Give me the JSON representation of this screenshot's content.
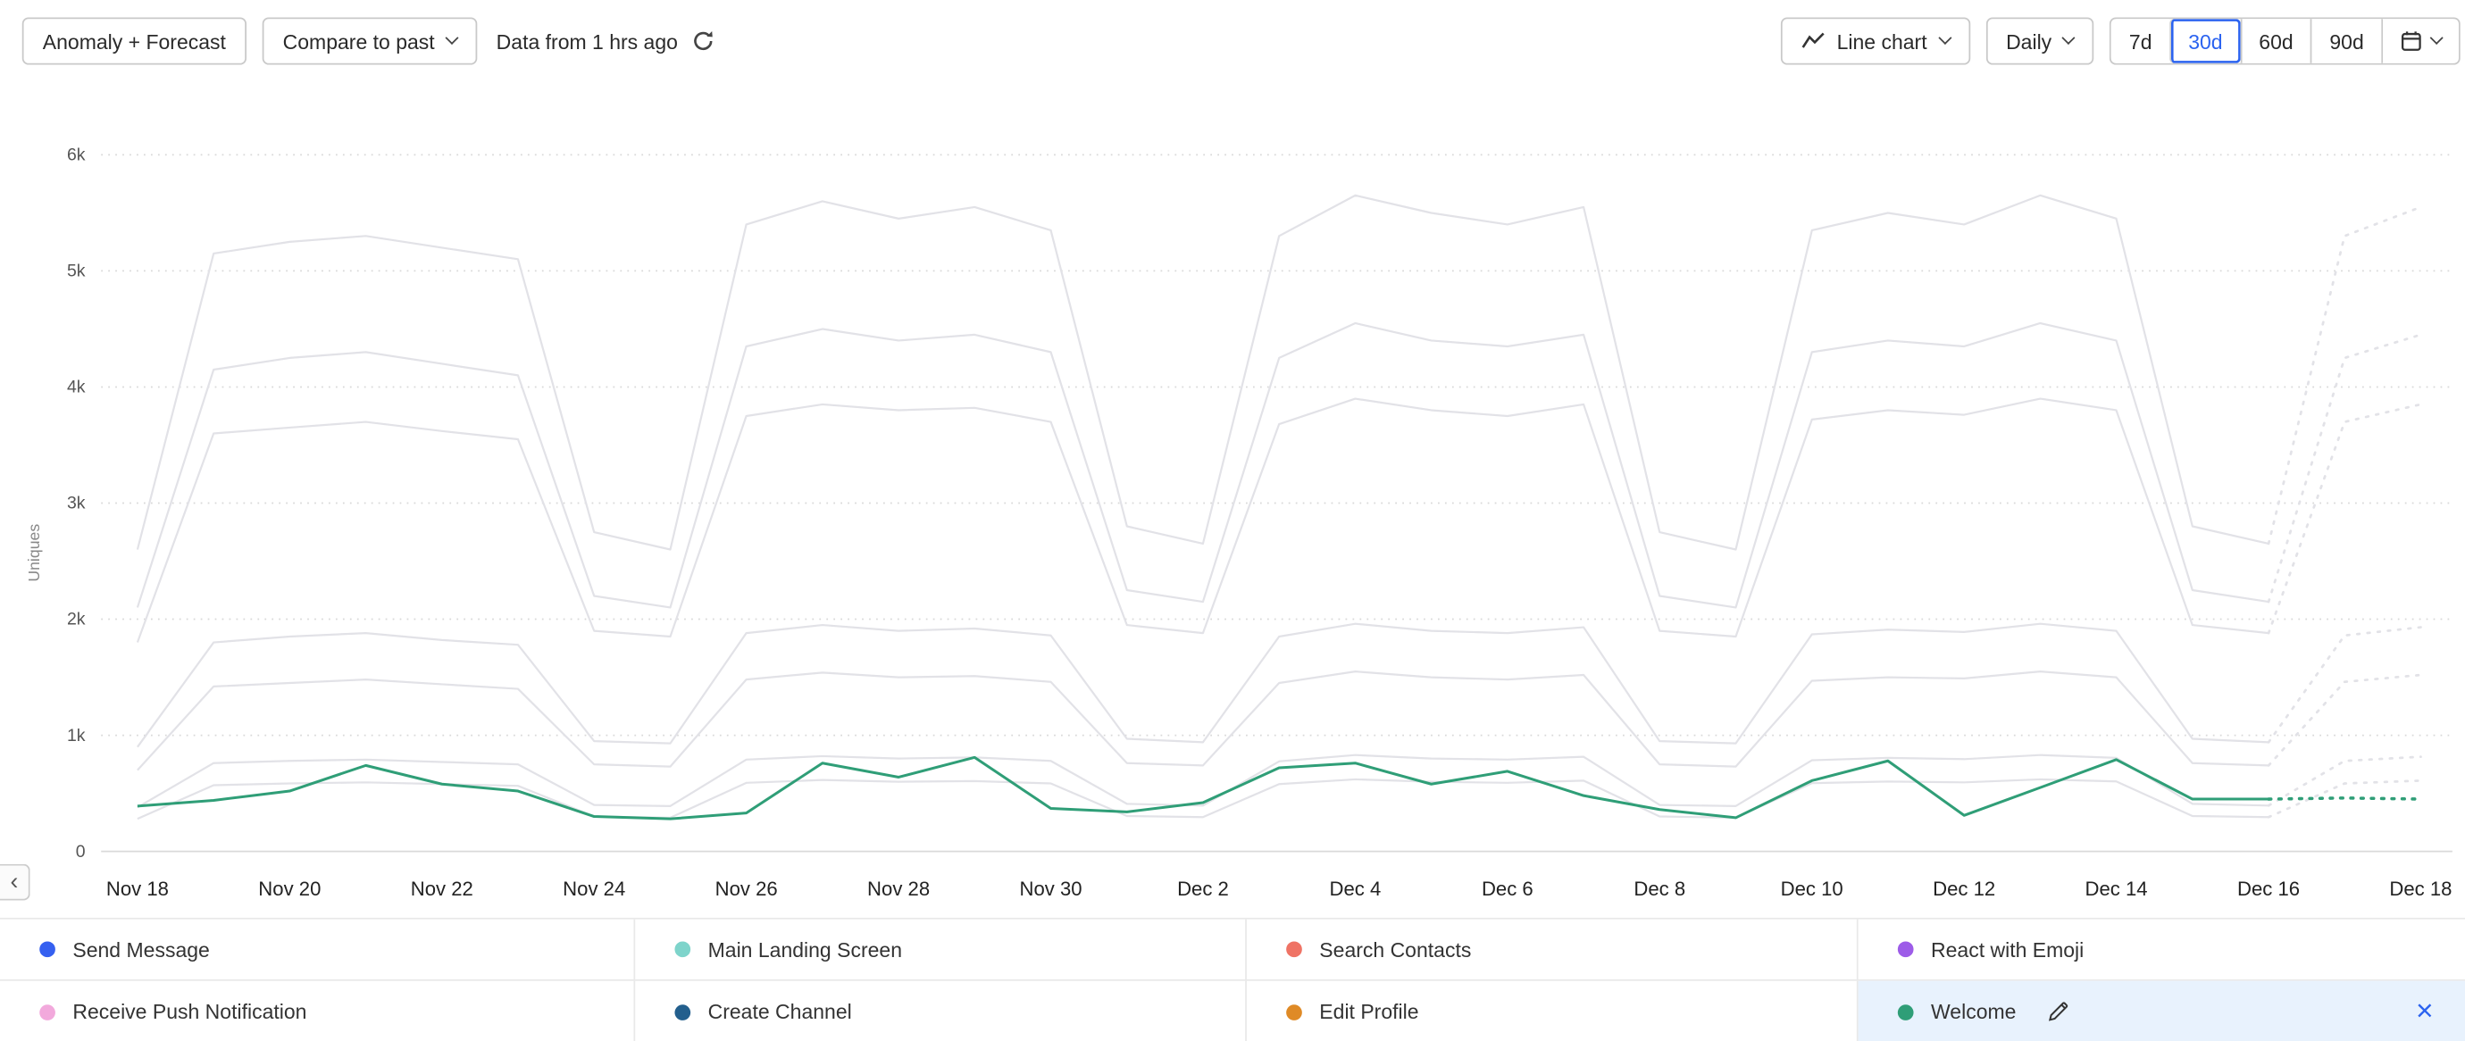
{
  "toolbar": {
    "anomaly_button": "Anomaly + Forecast",
    "compare_button": "Compare to past",
    "freshness": "Data from 1 hrs ago",
    "chart_type_button": "Line chart",
    "granularity_button": "Daily",
    "ranges": [
      "7d",
      "30d",
      "60d",
      "90d"
    ],
    "selected_range": "30d"
  },
  "icons": {
    "close": "×",
    "collapse_left": "‹"
  },
  "colors": {
    "accent": "#2b63f0",
    "muted_line": "#e2e2e7",
    "grid": "#d9d9d9",
    "axis_text": "#555555",
    "selected_row_bg": "#e8f2fd"
  },
  "chart_data": {
    "type": "line",
    "title": "",
    "xlabel": "",
    "ylabel": "Uniques",
    "ylim": [
      0,
      6000
    ],
    "yticks": [
      "0",
      "1k",
      "2k",
      "3k",
      "4k",
      "5k",
      "6k"
    ],
    "x_tick_every": 2,
    "grid": true,
    "legend_position": "bottom",
    "forecast_start_index": 28,
    "x": [
      "Nov 18",
      "Nov 19",
      "Nov 20",
      "Nov 21",
      "Nov 22",
      "Nov 23",
      "Nov 24",
      "Nov 25",
      "Nov 26",
      "Nov 27",
      "Nov 28",
      "Nov 29",
      "Nov 30",
      "Dec 1",
      "Dec 2",
      "Dec 3",
      "Dec 4",
      "Dec 5",
      "Dec 6",
      "Dec 7",
      "Dec 8",
      "Dec 9",
      "Dec 10",
      "Dec 11",
      "Dec 12",
      "Dec 13",
      "Dec 14",
      "Dec 15",
      "Dec 16",
      "Dec 17",
      "Dec 18"
    ],
    "series": [
      {
        "name": "Send Message",
        "color": "#3560f0",
        "highlighted": false,
        "values": [
          2600,
          5150,
          5250,
          5300,
          5200,
          5100,
          2750,
          2600,
          5400,
          5600,
          5450,
          5550,
          5350,
          2800,
          2650,
          5300,
          5650,
          5500,
          5400,
          5550,
          2750,
          2600,
          5350,
          5500,
          5400,
          5650,
          5450,
          2800,
          2650,
          5300,
          5550
        ]
      },
      {
        "name": "Main Landing Screen",
        "color": "#7ed4cb",
        "highlighted": false,
        "values": [
          2100,
          4150,
          4250,
          4300,
          4200,
          4100,
          2200,
          2100,
          4350,
          4500,
          4400,
          4450,
          4300,
          2250,
          2150,
          4250,
          4550,
          4400,
          4350,
          4450,
          2200,
          2100,
          4300,
          4400,
          4350,
          4550,
          4400,
          2250,
          2150,
          4250,
          4450
        ]
      },
      {
        "name": "React with Emoji",
        "color": "#9d5ce8",
        "highlighted": false,
        "values": [
          1800,
          3600,
          3650,
          3700,
          3620,
          3550,
          1900,
          1850,
          3750,
          3850,
          3800,
          3820,
          3700,
          1950,
          1880,
          3680,
          3900,
          3800,
          3750,
          3850,
          1900,
          1850,
          3720,
          3800,
          3760,
          3900,
          3800,
          1950,
          1880,
          3700,
          3850
        ]
      },
      {
        "name": "Search Contacts",
        "color": "#ef7365",
        "highlighted": false,
        "values": [
          900,
          1800,
          1850,
          1880,
          1820,
          1780,
          950,
          930,
          1880,
          1950,
          1900,
          1920,
          1860,
          970,
          940,
          1850,
          1960,
          1900,
          1880,
          1930,
          950,
          930,
          1870,
          1910,
          1890,
          1960,
          1900,
          970,
          940,
          1860,
          1930
        ]
      },
      {
        "name": "Receive Push Notification",
        "color": "#f2a9dc",
        "highlighted": false,
        "values": [
          700,
          1420,
          1450,
          1480,
          1440,
          1400,
          750,
          730,
          1480,
          1540,
          1500,
          1510,
          1460,
          760,
          740,
          1450,
          1550,
          1500,
          1480,
          1520,
          750,
          730,
          1470,
          1500,
          1490,
          1550,
          1500,
          760,
          740,
          1460,
          1520
        ]
      },
      {
        "name": "Create Channel",
        "color": "#235f8d",
        "highlighted": false,
        "values": [
          380,
          760,
          780,
          790,
          770,
          750,
          400,
          390,
          790,
          820,
          800,
          810,
          780,
          410,
          395,
          775,
          830,
          800,
          790,
          815,
          400,
          390,
          785,
          805,
          795,
          830,
          805,
          410,
          395,
          780,
          815
        ]
      },
      {
        "name": "Edit Profile",
        "color": "#df8a26",
        "highlighted": false,
        "values": [
          280,
          570,
          585,
          595,
          580,
          565,
          300,
          290,
          590,
          615,
          600,
          605,
          585,
          305,
          295,
          580,
          620,
          600,
          590,
          610,
          300,
          290,
          588,
          602,
          595,
          620,
          603,
          305,
          295,
          585,
          610
        ]
      },
      {
        "name": "Welcome",
        "color": "#2f9e77",
        "highlighted": true,
        "values": [
          390,
          440,
          520,
          740,
          580,
          520,
          300,
          280,
          330,
          760,
          640,
          810,
          370,
          340,
          420,
          720,
          760,
          580,
          690,
          480,
          360,
          290,
          610,
          780,
          310,
          550,
          790,
          450,
          450,
          460,
          450
        ]
      }
    ]
  },
  "legend": {
    "items": [
      {
        "label": "Send Message",
        "color": "#3560f0"
      },
      {
        "label": "Main Landing Screen",
        "color": "#7ed4cb"
      },
      {
        "label": "Search Contacts",
        "color": "#ef7365"
      },
      {
        "label": "React with Emoji",
        "color": "#9d5ce8"
      },
      {
        "label": "Receive Push Notification",
        "color": "#f2a9dc"
      },
      {
        "label": "Create Channel",
        "color": "#235f8d"
      },
      {
        "label": "Edit Profile",
        "color": "#df8a26"
      },
      {
        "label": "Welcome",
        "color": "#2f9e77",
        "selected": true
      }
    ]
  }
}
